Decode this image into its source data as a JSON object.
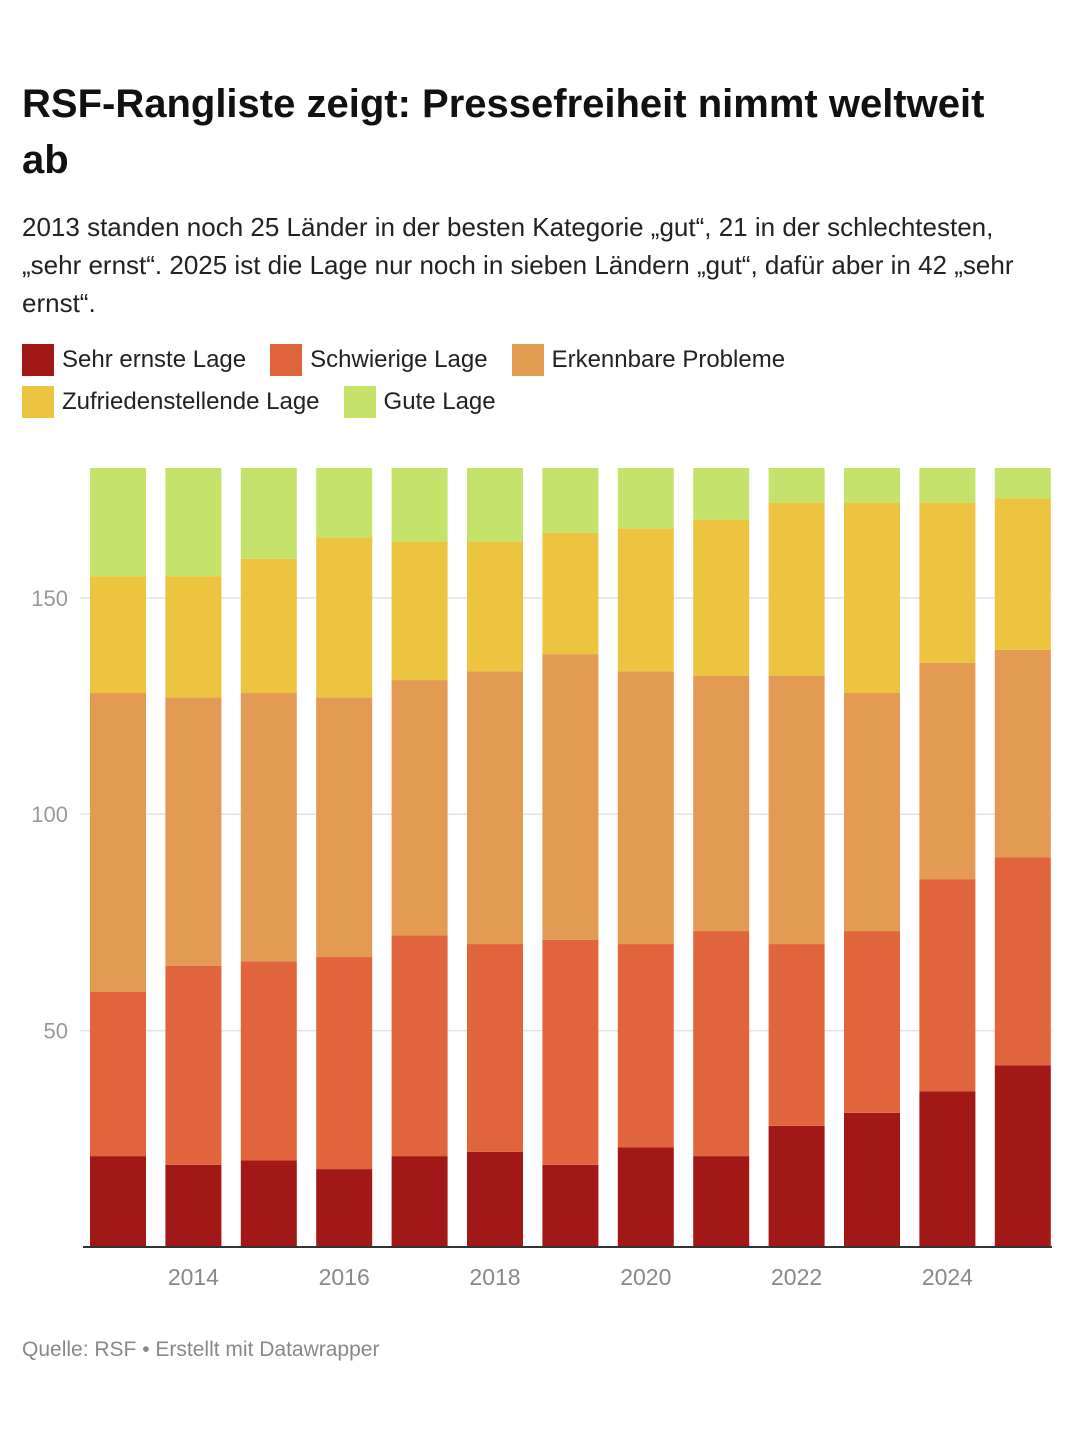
{
  "title": "RSF-Rangliste zeigt: Pressefreiheit nimmt weltweit ab",
  "subtitle": "2013 standen noch 25 Länder in der besten Kategorie „gut“, 21 in der schlechtesten, „sehr ernst“. 2025 ist die Lage nur noch in sieben Ländern „gut“, dafür aber in 42 „sehr ernst“.",
  "footer": "Quelle: RSF • Erstellt mit Datawrapper",
  "chart_data": {
    "type": "bar",
    "stacked": true,
    "categories": [
      "2013",
      "2014",
      "2015",
      "2016",
      "2017",
      "2018",
      "2019",
      "2020",
      "2021",
      "2022",
      "2023",
      "2024",
      "2025"
    ],
    "x_tick_labels": [
      "2014",
      "2016",
      "2018",
      "2020",
      "2022",
      "2024"
    ],
    "y_ticks": [
      50,
      100,
      150
    ],
    "ylim": [
      0,
      180
    ],
    "grid": true,
    "legend_position": "top",
    "series": [
      {
        "name": "Sehr ernste Lage",
        "color": "#a11816",
        "values": [
          21,
          19,
          20,
          18,
          21,
          22,
          19,
          23,
          21,
          28,
          31,
          36,
          42
        ]
      },
      {
        "name": "Schwierige Lage",
        "color": "#e0653d",
        "values": [
          38,
          46,
          46,
          49,
          51,
          48,
          52,
          47,
          52,
          42,
          42,
          49,
          48
        ]
      },
      {
        "name": "Erkennbare Probleme",
        "color": "#e39a52",
        "values": [
          69,
          62,
          62,
          60,
          59,
          63,
          66,
          63,
          59,
          62,
          55,
          50,
          48
        ]
      },
      {
        "name": "Zufriedenstellende Lage",
        "color": "#ecc43f",
        "values": [
          27,
          28,
          31,
          37,
          32,
          30,
          28,
          33,
          36,
          40,
          44,
          37,
          35
        ]
      },
      {
        "name": "Gute Lage",
        "color": "#c5e26b",
        "values": [
          25,
          25,
          21,
          16,
          17,
          17,
          15,
          14,
          12,
          8,
          8,
          8,
          7
        ]
      }
    ]
  }
}
